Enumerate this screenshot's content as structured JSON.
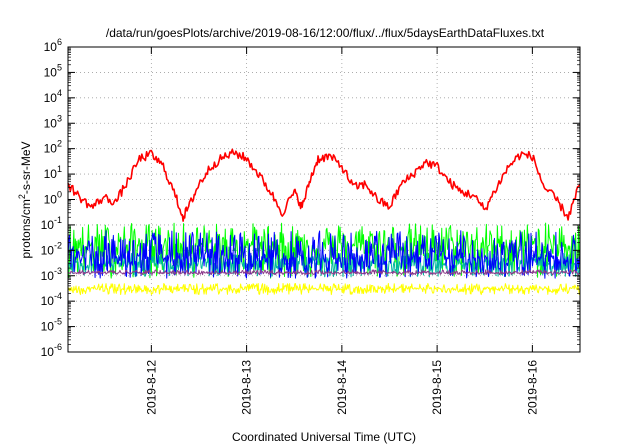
{
  "chart_data": {
    "type": "line",
    "title": "/data/run/goesPlots/archive/2019-08-16/12:00/flux/../flux/5daysEarthDataFluxes.txt",
    "xlabel": "Coordinated Universal Time (UTC)",
    "ylabel": {
      "base": "protons/cm",
      "sup": "2",
      "rest": "-s-sr-MeV"
    },
    "yscale": "log",
    "ylim_exp": [
      -6,
      6
    ],
    "y_ticks": [
      {
        "base": "10",
        "exp": "-6"
      },
      {
        "base": "10",
        "exp": "-5"
      },
      {
        "base": "10",
        "exp": "-4"
      },
      {
        "base": "10",
        "exp": "-3"
      },
      {
        "base": "10",
        "exp": "-2"
      },
      {
        "base": "10",
        "exp": "-1"
      },
      {
        "base": "10",
        "exp": "0"
      },
      {
        "base": "10",
        "exp": "1"
      },
      {
        "base": "10",
        "exp": "2"
      },
      {
        "base": "10",
        "exp": "3"
      },
      {
        "base": "10",
        "exp": "4"
      },
      {
        "base": "10",
        "exp": "5"
      },
      {
        "base": "10",
        "exp": "6"
      }
    ],
    "xlim": [
      "2019-08-11T03:00",
      "2019-08-16T12:00"
    ],
    "x_ticks": [
      {
        "label": "2019-8-12",
        "time": "2019-08-12T00:00"
      },
      {
        "label": "2019-8-13",
        "time": "2019-08-13T00:00"
      },
      {
        "label": "2019-8-14",
        "time": "2019-08-14T00:00"
      },
      {
        "label": "2019-8-15",
        "time": "2019-08-15T00:00"
      },
      {
        "label": "2019-8-16",
        "time": "2019-08-16T00:00"
      }
    ],
    "grid": true,
    "series": [
      {
        "color": "#ff0000",
        "style": "smooth",
        "x": [
          "2019-08-11T03:00",
          "2019-08-11T06:00",
          "2019-08-11T09:00",
          "2019-08-11T12:00",
          "2019-08-11T15:00",
          "2019-08-11T18:00",
          "2019-08-11T21:00",
          "2019-08-12T00:00",
          "2019-08-12T03:00",
          "2019-08-12T06:00",
          "2019-08-12T08:00",
          "2019-08-12T10:00",
          "2019-08-12T12:00",
          "2019-08-12T15:00",
          "2019-08-12T18:00",
          "2019-08-12T21:00",
          "2019-08-13T00:00",
          "2019-08-13T03:00",
          "2019-08-13T06:00",
          "2019-08-13T09:00",
          "2019-08-13T12:00",
          "2019-08-13T14:00",
          "2019-08-13T16:00",
          "2019-08-13T18:00",
          "2019-08-13T21:00",
          "2019-08-14T00:00",
          "2019-08-14T03:00",
          "2019-08-14T06:00",
          "2019-08-14T09:00",
          "2019-08-14T12:00",
          "2019-08-14T15:00",
          "2019-08-14T18:00",
          "2019-08-14T21:00",
          "2019-08-15T00:00",
          "2019-08-15T03:00",
          "2019-08-15T06:00",
          "2019-08-15T09:00",
          "2019-08-15T12:00",
          "2019-08-15T15:00",
          "2019-08-15T18:00",
          "2019-08-15T21:00",
          "2019-08-16T00:00",
          "2019-08-16T03:00",
          "2019-08-16T06:00",
          "2019-08-16T09:00",
          "2019-08-16T12:00"
        ],
        "y": [
          4,
          1.2,
          0.5,
          1.2,
          0.8,
          5,
          40,
          60,
          20,
          1.5,
          0.2,
          0.8,
          4,
          20,
          45,
          70,
          40,
          10,
          2,
          0.3,
          2,
          0.5,
          6,
          40,
          50,
          20,
          3,
          4,
          1,
          0.5,
          4,
          10,
          30,
          20,
          5,
          2,
          1.5,
          0.4,
          3,
          20,
          60,
          50,
          3,
          1,
          0.2,
          4
        ]
      },
      {
        "color": "#00ff00",
        "style": "noise",
        "x": [
          "2019-08-11T03:00",
          "2019-08-16T12:00"
        ],
        "y": [
          0.015,
          0.015
        ],
        "y_min": 0.0008,
        "y_max": 0.12
      },
      {
        "color": "#0000ff",
        "style": "noise",
        "x": [
          "2019-08-11T03:00",
          "2019-08-16T12:00"
        ],
        "y": [
          0.005,
          0.005
        ],
        "y_min": 0.0008,
        "y_max": 0.06
      },
      {
        "color": "#00b8a0",
        "style": "noise",
        "x": [
          "2019-08-11T03:00",
          "2019-08-16T12:00"
        ],
        "y": [
          0.003,
          0.003
        ],
        "y_min": 0.0009,
        "y_max": 0.008
      },
      {
        "color": "#8b3a8b",
        "style": "noise",
        "x": [
          "2019-08-11T03:00",
          "2019-08-16T12:00"
        ],
        "y": [
          0.0013,
          0.0013
        ],
        "y_min": 0.0011,
        "y_max": 0.0017
      },
      {
        "color": "#ffff00",
        "style": "noise",
        "x": [
          "2019-08-11T03:00",
          "2019-08-16T12:00"
        ],
        "y": [
          0.0003,
          0.0003
        ],
        "y_min": 0.00018,
        "y_max": 0.0005
      }
    ]
  }
}
